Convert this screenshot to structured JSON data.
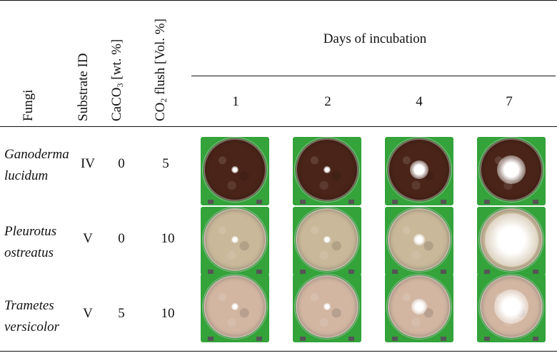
{
  "table": {
    "headers": {
      "fungi": "Fungi",
      "substrate_id": "Substrate ID",
      "caco3_main": "CaCO",
      "caco3_sub": "3",
      "caco3_unit": " [wt. %]",
      "co2_main": "CO",
      "co2_sub": "2",
      "co2_unit": " flush [Vol. %]",
      "days_of_incubation": "Days of incubation",
      "days": [
        "1",
        "2",
        "4",
        "7"
      ]
    },
    "rows": [
      {
        "fungus_line1": "Ganoderma",
        "fungus_line2": "lucidum",
        "substrate_id": "IV",
        "caco3": "0",
        "co2": "5",
        "substrate_color": "#4a2418",
        "mycelium_growth": [
          0.05,
          0.1,
          0.3,
          0.45
        ]
      },
      {
        "fungus_line1": "Pleurotus",
        "fungus_line2": "ostreatus",
        "substrate_id": "V",
        "caco3": "0",
        "co2": "10",
        "substrate_color": "#c9b89a",
        "mycelium_growth": [
          0.06,
          0.1,
          0.18,
          0.85
        ]
      },
      {
        "fungus_line1": "Trametes",
        "fungus_line2": "versicolor",
        "substrate_id": "V",
        "caco3": "5",
        "co2": "10",
        "substrate_color": "#d2b6a2",
        "mycelium_growth": [
          0.06,
          0.08,
          0.25,
          0.55
        ]
      }
    ]
  },
  "colors": {
    "background_green": "#33a33a",
    "mycelium_white": "#ffffff"
  }
}
